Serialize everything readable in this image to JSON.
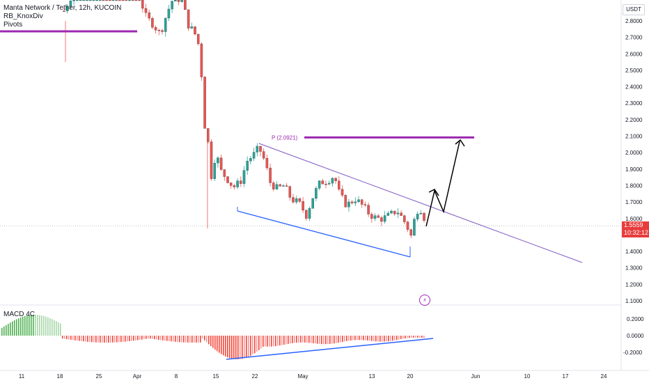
{
  "legend": {
    "symbol": "Manta Network / Tether, 12h, KUCOIN",
    "indicator1": "RB_KnoxDiv",
    "indicator2": "Pivots"
  },
  "price_axis": {
    "currency_badge": "USDT",
    "current_price": "1.5559",
    "countdown": "10:32:12"
  },
  "macd": {
    "label": "MACD 4C"
  },
  "pivot": {
    "label": "P (2.0921)",
    "value": 2.0921
  },
  "colors": {
    "bull": "#26a69a",
    "bear": "#ef5350",
    "pivot": "#9c27b0",
    "trendline_upper": "#7e57c2",
    "trendline_lower": "#2962ff",
    "macd_pos_strong": "#4caf50",
    "macd_pos_weak": "#a5d6a7",
    "macd_neg_strong": "#f44336",
    "macd_neg_weak": "#ef9a9a",
    "price_tag": "#e83c3c"
  },
  "chart_data": {
    "type": "candlestick",
    "y_ticks": [
      "2.8000",
      "2.7000",
      "2.6000",
      "2.5000",
      "2.4000",
      "2.3000",
      "2.2000",
      "2.1000",
      "2.0000",
      "1.9000",
      "1.8000",
      "1.7000",
      "1.6000",
      "1.5000",
      "1.4000",
      "1.3000",
      "1.2000",
      "1.1000"
    ],
    "x_ticks": [
      "11",
      "18",
      "25",
      "Apr",
      "8",
      "15",
      "22",
      "May",
      "13",
      "20",
      "Jun",
      "10",
      "17",
      "24"
    ],
    "macd_ticks": [
      "0.2000",
      "0.0000",
      "-0.2000"
    ],
    "pivot_line": 2.0921,
    "last_price": 1.5559
  }
}
